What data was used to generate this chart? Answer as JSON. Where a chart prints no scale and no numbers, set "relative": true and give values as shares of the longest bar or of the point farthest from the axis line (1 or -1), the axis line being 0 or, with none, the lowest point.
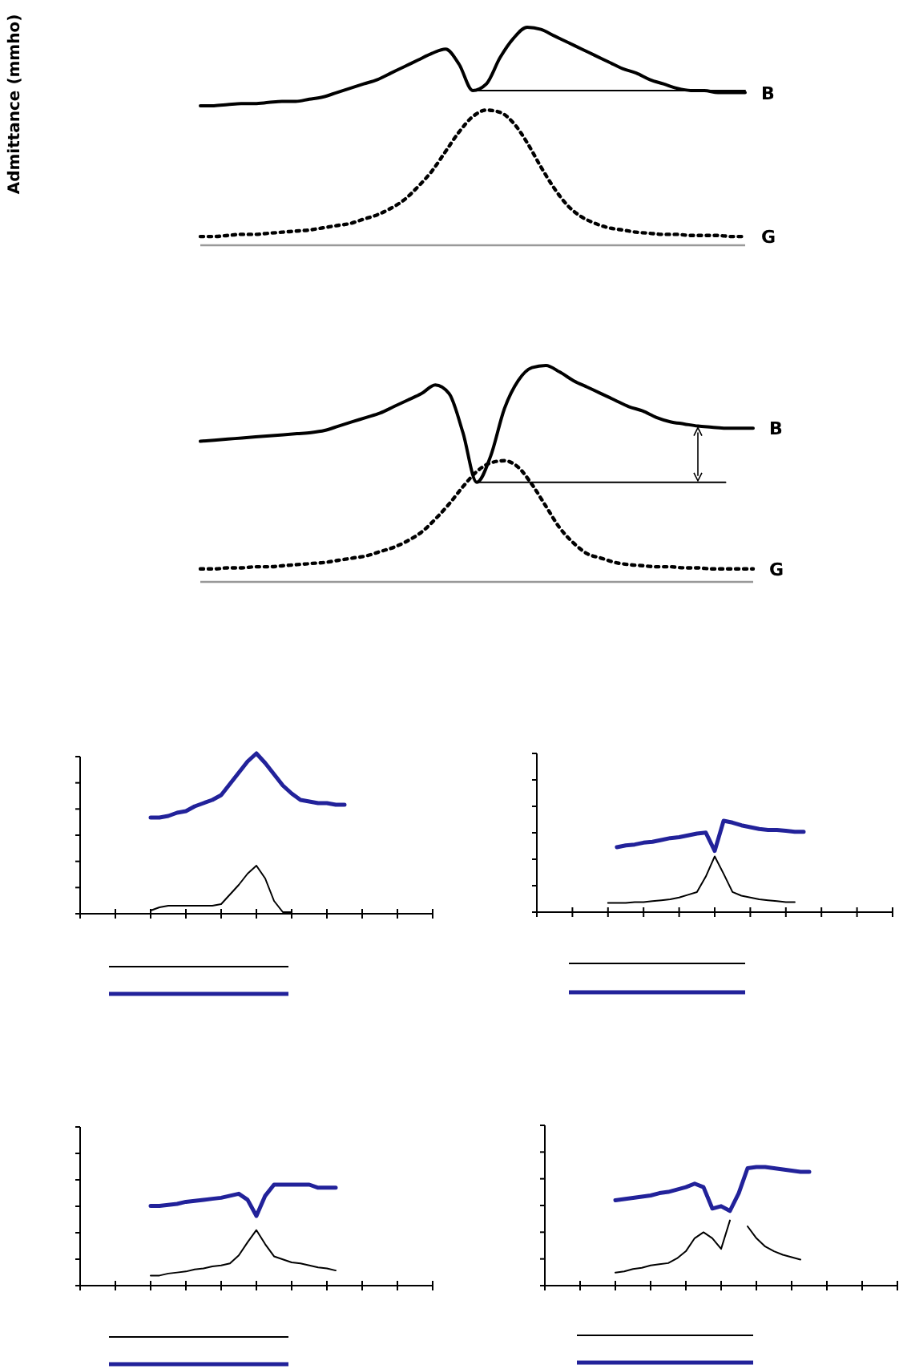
{
  "chart_data": [
    {
      "type": "line",
      "ylabel": "Admittance (mmho)",
      "relative": true,
      "categories": [
        null,
        null,
        null,
        null,
        null,
        null,
        null,
        null,
        null,
        null,
        null,
        null,
        null,
        null,
        null,
        null,
        null,
        null,
        null,
        null,
        null,
        null,
        null,
        null,
        null,
        null,
        null,
        null,
        null,
        null,
        null,
        null,
        null,
        null,
        null,
        null,
        null,
        null,
        null,
        null,
        null
      ],
      "series": [
        {
          "name": "B",
          "color": "#000000",
          "line_style": "solid",
          "values": [
            0.64,
            0.64,
            0.645,
            0.65,
            0.65,
            0.655,
            0.66,
            0.66,
            0.67,
            0.68,
            0.7,
            0.72,
            0.74,
            0.76,
            0.79,
            0.82,
            0.85,
            0.88,
            0.9,
            0.83,
            0.71,
            0.74,
            0.86,
            0.95,
            1.0,
            0.99,
            0.96,
            0.93,
            0.9,
            0.87,
            0.84,
            0.81,
            0.79,
            0.76,
            0.74,
            0.72,
            0.71,
            0.71,
            0.7,
            0.7,
            0.7
          ]
        },
        {
          "name": "G",
          "color": "#000000",
          "line_style": "dotted",
          "values": [
            0.04,
            0.04,
            0.045,
            0.05,
            0.05,
            0.055,
            0.06,
            0.065,
            0.07,
            0.08,
            0.09,
            0.1,
            0.12,
            0.14,
            0.17,
            0.21,
            0.27,
            0.34,
            0.43,
            0.52,
            0.59,
            0.62,
            0.61,
            0.56,
            0.47,
            0.36,
            0.26,
            0.18,
            0.13,
            0.1,
            0.08,
            0.07,
            0.06,
            0.055,
            0.05,
            0.05,
            0.045,
            0.045,
            0.045,
            0.04,
            0.04
          ]
        },
        {
          "color": "#000000",
          "line_style": "solid",
          "values": [
            null,
            null,
            null,
            null,
            null,
            null,
            null,
            null,
            null,
            null,
            null,
            null,
            null,
            null,
            null,
            null,
            null,
            null,
            null,
            null,
            0.71,
            0.71,
            0.71,
            0.71,
            0.71,
            0.71,
            0.71,
            0.71,
            0.71,
            0.71,
            0.71,
            0.71,
            0.71,
            0.71,
            0.71,
            0.71,
            0.71,
            0.71,
            0.71,
            0.71,
            0.71
          ]
        }
      ]
    },
    {
      "type": "line",
      "relative": true,
      "categories": [
        null,
        null,
        null,
        null,
        null,
        null,
        null,
        null,
        null,
        null,
        null,
        null,
        null,
        null,
        null,
        null,
        null,
        null,
        null,
        null,
        null,
        null,
        null,
        null,
        null,
        null,
        null,
        null,
        null,
        null,
        null,
        null,
        null,
        null,
        null,
        null,
        null,
        null,
        null,
        null,
        null
      ],
      "series": [
        {
          "name": "B",
          "color": "#000000",
          "line_style": "solid",
          "values": [
            0.65,
            0.655,
            0.66,
            0.665,
            0.67,
            0.675,
            0.68,
            0.685,
            0.69,
            0.7,
            0.72,
            0.74,
            0.76,
            0.78,
            0.81,
            0.84,
            0.87,
            0.91,
            0.87,
            0.69,
            0.46,
            0.58,
            0.8,
            0.93,
            0.99,
            1.0,
            0.97,
            0.93,
            0.9,
            0.87,
            0.84,
            0.81,
            0.79,
            0.76,
            0.74,
            0.73,
            0.72,
            0.715,
            0.71,
            0.71,
            0.71
          ]
        },
        {
          "name": "G",
          "color": "#000000",
          "line_style": "dotted",
          "values": [
            0.06,
            0.06,
            0.065,
            0.065,
            0.07,
            0.07,
            0.075,
            0.08,
            0.085,
            0.09,
            0.1,
            0.11,
            0.12,
            0.14,
            0.16,
            0.19,
            0.23,
            0.29,
            0.36,
            0.44,
            0.51,
            0.55,
            0.56,
            0.53,
            0.45,
            0.35,
            0.25,
            0.18,
            0.13,
            0.11,
            0.09,
            0.08,
            0.075,
            0.07,
            0.07,
            0.065,
            0.065,
            0.06,
            0.06,
            0.06,
            0.06
          ]
        },
        {
          "color": "#000000",
          "line_style": "solid",
          "values": [
            null,
            null,
            null,
            null,
            null,
            null,
            null,
            null,
            null,
            null,
            null,
            null,
            null,
            null,
            null,
            null,
            null,
            null,
            null,
            null,
            0.46,
            0.46,
            0.46,
            0.46,
            0.46,
            0.46,
            0.46,
            0.46,
            0.46,
            0.46,
            0.46,
            0.46,
            0.46,
            0.46,
            0.46,
            0.46,
            0.46,
            0.46,
            0.46,
            null,
            null
          ]
        }
      ]
    },
    {
      "type": "line",
      "relative": true,
      "categories": [
        null,
        null,
        null,
        null,
        null,
        null,
        null,
        null,
        null,
        null,
        null,
        null,
        null,
        null,
        null,
        null,
        null,
        null,
        null,
        null,
        null,
        null,
        null,
        null,
        null,
        null,
        null,
        null,
        null,
        null,
        null,
        null,
        null,
        null,
        null,
        null,
        null,
        null,
        null,
        null,
        null
      ],
      "series": [
        {
          "color": "#000000",
          "values": [
            null,
            null,
            null,
            null,
            null,
            null,
            null,
            null,
            0.02,
            0.04,
            0.05,
            0.05,
            0.05,
            0.05,
            0.05,
            0.05,
            0.06,
            0.12,
            0.18,
            0.25,
            0.3,
            0.22,
            0.08,
            0.01,
            0.01,
            null,
            null,
            null,
            null,
            null,
            null,
            null,
            null,
            null,
            null,
            null,
            null,
            null,
            null,
            null,
            null
          ]
        },
        {
          "color": "#22229a",
          "values": [
            null,
            null,
            null,
            null,
            null,
            null,
            null,
            null,
            0.6,
            0.6,
            0.61,
            0.63,
            0.64,
            0.67,
            0.69,
            0.71,
            0.74,
            0.81,
            0.88,
            0.95,
            1.0,
            0.94,
            0.87,
            0.8,
            0.75,
            0.71,
            0.7,
            0.69,
            0.69,
            0.68,
            0.68,
            null,
            null,
            null,
            null,
            null,
            null,
            null,
            null,
            null,
            null
          ]
        }
      ]
    },
    {
      "type": "line",
      "relative": true,
      "categories": [
        null,
        null,
        null,
        null,
        null,
        null,
        null,
        null,
        null,
        null,
        null,
        null,
        null,
        null,
        null,
        null,
        null,
        null,
        null,
        null,
        null,
        null,
        null,
        null,
        null,
        null,
        null,
        null,
        null,
        null,
        null,
        null,
        null,
        null,
        null,
        null,
        null,
        null,
        null,
        null,
        null
      ],
      "series": [
        {
          "color": "#000000",
          "values": [
            null,
            null,
            null,
            null,
            null,
            null,
            null,
            null,
            0.1,
            0.1,
            0.1,
            0.11,
            0.11,
            0.12,
            0.13,
            0.14,
            0.16,
            0.19,
            0.22,
            0.39,
            0.61,
            0.42,
            0.22,
            0.18,
            0.16,
            0.14,
            0.13,
            0.12,
            0.11,
            0.11,
            null,
            null,
            null,
            null,
            null,
            null,
            null,
            null,
            null,
            null,
            null
          ]
        },
        {
          "color": "#22229a",
          "values": [
            null,
            null,
            null,
            null,
            null,
            null,
            null,
            null,
            null,
            0.71,
            0.73,
            0.74,
            0.76,
            0.77,
            0.79,
            0.81,
            0.82,
            0.84,
            0.86,
            0.87,
            0.67,
            1.0,
            0.98,
            0.95,
            0.93,
            0.91,
            0.9,
            0.9,
            0.89,
            0.88,
            0.88,
            null,
            null,
            null,
            null,
            null,
            null,
            null,
            null,
            null,
            null
          ]
        }
      ]
    },
    {
      "type": "line",
      "relative": true,
      "categories": [
        null,
        null,
        null,
        null,
        null,
        null,
        null,
        null,
        null,
        null,
        null,
        null,
        null,
        null,
        null,
        null,
        null,
        null,
        null,
        null,
        null,
        null,
        null,
        null,
        null,
        null,
        null,
        null,
        null,
        null,
        null,
        null,
        null,
        null,
        null,
        null,
        null,
        null,
        null,
        null,
        null
      ],
      "series": [
        {
          "color": "#000000",
          "values": [
            null,
            null,
            null,
            null,
            null,
            null,
            null,
            null,
            0.1,
            0.1,
            0.12,
            0.13,
            0.14,
            0.16,
            0.17,
            0.19,
            0.2,
            0.22,
            0.3,
            0.43,
            0.55,
            0.41,
            0.29,
            0.26,
            0.23,
            0.22,
            0.2,
            0.18,
            0.17,
            0.15,
            null,
            null,
            null,
            null,
            null,
            null,
            null,
            null,
            null,
            null,
            null
          ]
        },
        {
          "color": "#22229a",
          "values": [
            null,
            null,
            null,
            null,
            null,
            null,
            null,
            null,
            0.79,
            0.79,
            0.8,
            0.81,
            0.83,
            0.84,
            0.85,
            0.86,
            0.87,
            0.89,
            0.91,
            0.85,
            0.69,
            0.89,
            1.0,
            1.0,
            1.0,
            1.0,
            1.0,
            0.97,
            0.97,
            0.97,
            null,
            null,
            null,
            null,
            null,
            null,
            null,
            null,
            null,
            null,
            null
          ]
        }
      ]
    },
    {
      "type": "line",
      "relative": true,
      "categories": [
        null,
        null,
        null,
        null,
        null,
        null,
        null,
        null,
        null,
        null,
        null,
        null,
        null,
        null,
        null,
        null,
        null,
        null,
        null,
        null,
        null,
        null,
        null,
        null,
        null,
        null,
        null,
        null,
        null,
        null,
        null,
        null,
        null,
        null,
        null,
        null,
        null,
        null,
        null,
        null,
        null
      ],
      "series": [
        {
          "color": "#000000",
          "values": [
            null,
            null,
            null,
            null,
            null,
            null,
            null,
            null,
            0.11,
            0.12,
            0.14,
            0.15,
            0.17,
            0.18,
            0.19,
            0.23,
            0.29,
            0.4,
            0.45,
            0.4,
            0.31,
            0.55,
            null,
            0.5,
            0.4,
            0.33,
            0.29,
            0.26,
            0.24,
            0.22,
            null,
            null,
            null,
            null,
            null,
            null,
            null,
            null,
            null,
            null,
            null
          ]
        },
        {
          "color": "#22229a",
          "values": [
            null,
            null,
            null,
            null,
            null,
            null,
            null,
            null,
            0.72,
            0.73,
            0.74,
            0.75,
            0.76,
            0.78,
            0.79,
            0.81,
            0.83,
            0.86,
            0.83,
            0.65,
            0.67,
            0.63,
            0.78,
            0.99,
            1.0,
            1.0,
            0.99,
            0.98,
            0.97,
            0.96,
            0.96,
            null,
            null,
            null,
            null,
            null,
            null,
            null,
            null,
            null,
            null
          ]
        }
      ]
    }
  ]
}
